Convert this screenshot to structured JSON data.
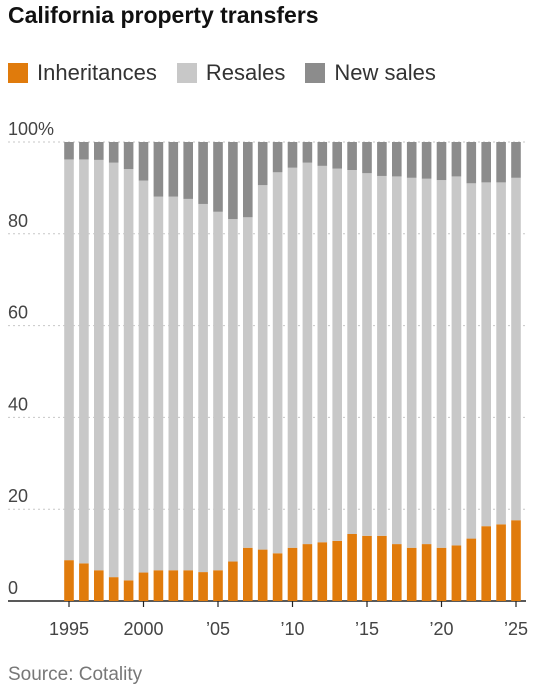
{
  "title": "California property transfers",
  "source": "Source: Cotality",
  "colors": {
    "inheritances": "#e07b0c",
    "resales": "#c8c8c8",
    "new_sales": "#8c8c8c"
  },
  "legend": [
    {
      "label": "Inheritances",
      "color": "#e07b0c"
    },
    {
      "label": "Resales",
      "color": "#c8c8c8"
    },
    {
      "label": "New sales",
      "color": "#8c8c8c"
    }
  ],
  "chart_data": {
    "type": "bar",
    "stacked": true,
    "title": "California property transfers",
    "ylim": [
      0,
      100
    ],
    "y_ticks": [
      0,
      20,
      40,
      60,
      80,
      100
    ],
    "y_tick_labels": [
      "0",
      "20",
      "40",
      "60",
      "80",
      "100%"
    ],
    "x_tick_labels": [
      {
        "year": 1995,
        "label": "1995"
      },
      {
        "year": 2000,
        "label": "2000"
      },
      {
        "year": 2005,
        "label": "’05"
      },
      {
        "year": 2010,
        "label": "’10"
      },
      {
        "year": 2015,
        "label": "’15"
      },
      {
        "year": 2020,
        "label": "’20"
      },
      {
        "year": 2025,
        "label": "’25"
      }
    ],
    "grid": true,
    "legend_position": "top",
    "categories": [
      1995,
      1996,
      1997,
      1998,
      1999,
      2000,
      2001,
      2002,
      2003,
      2004,
      2005,
      2006,
      2007,
      2008,
      2009,
      2010,
      2011,
      2012,
      2013,
      2014,
      2015,
      2016,
      2017,
      2018,
      2019,
      2020,
      2021,
      2022,
      2023,
      2024,
      2025
    ],
    "series": [
      {
        "name": "Inheritances",
        "values": [
          8.9,
          8.2,
          6.7,
          5.2,
          4.5,
          6.2,
          6.7,
          6.7,
          6.7,
          6.3,
          6.7,
          8.6,
          11.6,
          11.2,
          10.4,
          11.6,
          12.4,
          12.8,
          13.1,
          14.6,
          14.2,
          14.2,
          12.4,
          11.6,
          12.4,
          11.6,
          12.1,
          13.6,
          16.3,
          16.7,
          17.6
        ]
      },
      {
        "name": "Resales",
        "values": [
          87.3,
          88.0,
          89.4,
          90.3,
          89.6,
          85.4,
          81.4,
          81.4,
          80.9,
          80.2,
          78.1,
          74.6,
          72.0,
          79.4,
          83.0,
          82.8,
          83.1,
          82.0,
          81.1,
          79.3,
          79.0,
          78.4,
          80.1,
          80.6,
          79.6,
          80.1,
          80.4,
          77.4,
          74.9,
          74.5,
          74.6
        ]
      },
      {
        "name": "New sales",
        "values": [
          3.8,
          3.8,
          3.9,
          4.5,
          5.9,
          8.4,
          11.9,
          11.9,
          12.4,
          13.5,
          15.2,
          16.8,
          16.4,
          9.4,
          6.6,
          5.6,
          4.5,
          5.2,
          5.8,
          6.1,
          6.8,
          7.4,
          7.5,
          7.8,
          8.0,
          8.3,
          7.5,
          9.0,
          8.8,
          8.8,
          7.8
        ]
      }
    ]
  }
}
